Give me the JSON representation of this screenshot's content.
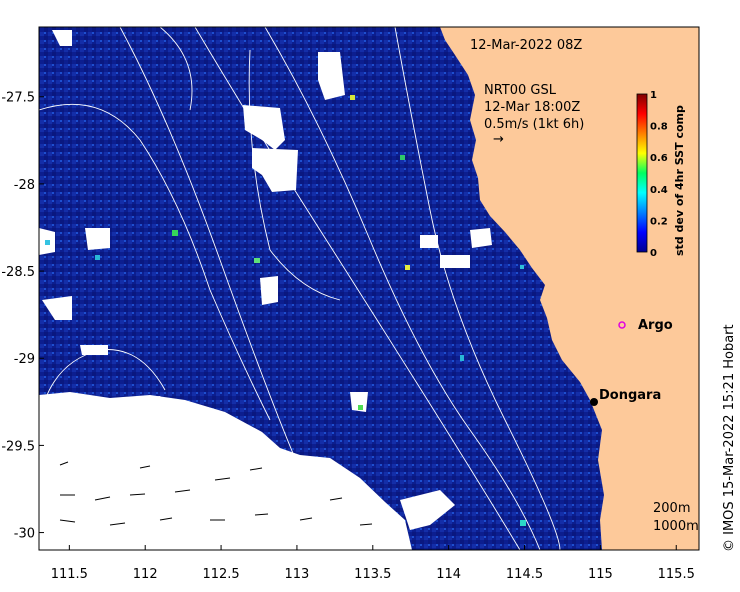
{
  "header": {
    "date_time": "12-Mar-2022 08Z"
  },
  "map": {
    "x_ticks": [
      "111.5",
      "112",
      "112.5",
      "113",
      "113.5",
      "114",
      "114.5",
      "115",
      "115.5"
    ],
    "y_ticks": [
      "-27.5",
      "-28",
      "-28.5",
      "-29",
      "-29.5",
      "-30"
    ],
    "x_range": [
      111.3,
      115.65
    ],
    "y_range": [
      -30.1,
      -27.1
    ],
    "land_color": "#fdc99a",
    "nodata_color": "#ffffff",
    "ocean_color": "#0c1e8f"
  },
  "current_info": {
    "source": "NRT00 GSL",
    "time": "12-Mar 18:00Z",
    "scale": "0.5m/s (1kt 6h)",
    "arrow": "→"
  },
  "places": [
    {
      "name": "Argo",
      "marker": "magenta-circle"
    },
    {
      "name": "Dongara",
      "marker": "black-dot"
    }
  ],
  "colorbar": {
    "title": "std dev of 4hr SST comp",
    "ticks": [
      "1",
      "0.8",
      "0.6",
      "0.4",
      "0.2",
      "0"
    ],
    "range": [
      0,
      1
    ],
    "colormap": "jet"
  },
  "contours": [
    "200m",
    "1000m"
  ],
  "credit": "© IMOS 15-Mar-2022 15:21 Hobart"
}
